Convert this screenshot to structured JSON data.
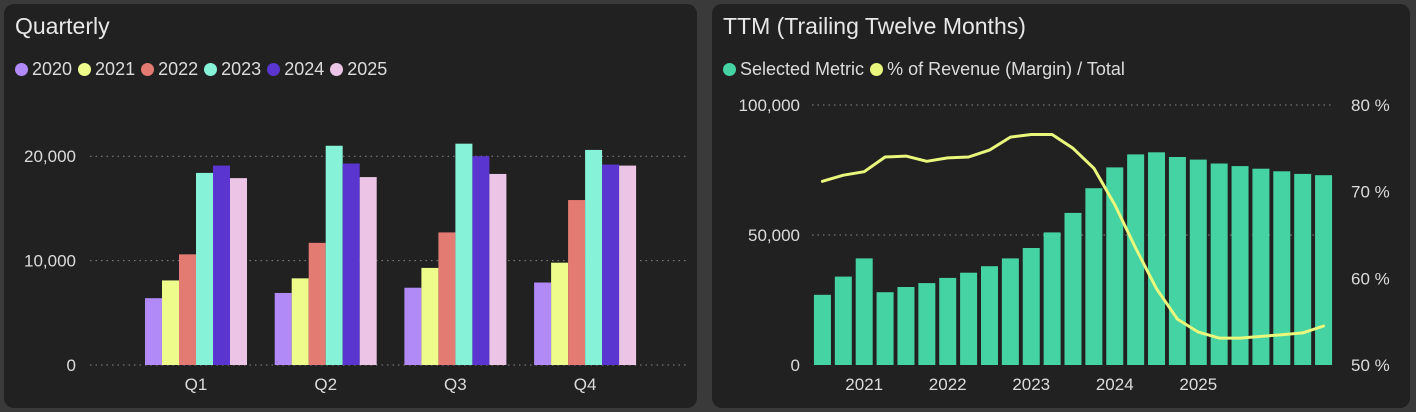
{
  "colors": {
    "background": "#212121",
    "grid": "#8a8a8a",
    "bar_tm": "#45d3a3",
    "line_margin": "#e9f77c"
  },
  "chart_data": [
    {
      "type": "bar",
      "title": "Quarterly",
      "categories": [
        "Q1",
        "Q2",
        "Q3",
        "Q4"
      ],
      "series": [
        {
          "name": "2020",
          "color": "#b28af7",
          "values": [
            6400,
            6900,
            7400,
            7900
          ]
        },
        {
          "name": "2021",
          "color": "#eefc8c",
          "values": [
            8100,
            8300,
            9300,
            9800
          ]
        },
        {
          "name": "2022",
          "color": "#e37b72",
          "values": [
            10600,
            11700,
            12700,
            15800
          ]
        },
        {
          "name": "2023",
          "color": "#86f2d8",
          "values": [
            18400,
            21000,
            21200,
            20600
          ]
        },
        {
          "name": "2024",
          "color": "#5a35cf",
          "values": [
            19100,
            19300,
            20000,
            19200
          ]
        },
        {
          "name": "2025",
          "color": "#ecc5e6",
          "values": [
            17900,
            18000,
            18300,
            19100
          ]
        }
      ],
      "ylim": [
        0,
        25000
      ],
      "yticks": [
        0,
        10000,
        20000
      ],
      "ytick_labels": [
        "0",
        "10,000",
        "20,000"
      ],
      "grid": true,
      "legend_position": "top-left"
    },
    {
      "type": "bar+line",
      "title": "TTM (Trailing Twelve Months)",
      "x": [
        "2020-Q4",
        "2021-Q1",
        "2021-Q2",
        "2021-Q3",
        "2021-Q4",
        "2022-Q1",
        "2022-Q2",
        "2022-Q3",
        "2022-Q4",
        "2023-Q1",
        "2023-Q2",
        "2023-Q3",
        "2023-Q4",
        "2024-Q1",
        "2024-Q2",
        "2024-Q3",
        "2024-Q4",
        "2025-Q1",
        "2025-Q2",
        "2025-Q3",
        "2025-Q4",
        "2026-Q1",
        "2026-Q2",
        "2026-Q3",
        "2026-Q4"
      ],
      "x_tick_labels": [
        "2021",
        "2022",
        "2023",
        "2024",
        "2025"
      ],
      "x_tick_positions": [
        2.5,
        6.5,
        10.5,
        14.5,
        18.5
      ],
      "series": [
        {
          "name": "Selected Metric",
          "type": "bar",
          "axis": "left",
          "color": "#45d3a3",
          "values": [
            27000,
            34000,
            41000,
            28000,
            30000,
            31500,
            33500,
            35500,
            38000,
            41000,
            45000,
            51000,
            58500,
            68000,
            76000,
            81000,
            81800,
            80000,
            79000,
            77500,
            76500,
            75500,
            74500,
            73500,
            73000
          ]
        },
        {
          "name": "% of Revenue (Margin) / Total",
          "type": "line",
          "axis": "right",
          "color": "#e9f77c",
          "values": [
            71.2,
            71.9,
            72.3,
            74.0,
            74.1,
            73.5,
            73.9,
            74.0,
            74.8,
            76.3,
            76.6,
            76.6,
            75.0,
            72.7,
            68.5,
            63.5,
            58.8,
            55.3,
            53.8,
            53.1,
            53.1,
            53.3,
            53.5,
            53.7,
            54.5
          ]
        }
      ],
      "ylim": [
        0,
        100000
      ],
      "yticks": [
        0,
        50000,
        100000
      ],
      "ytick_labels": [
        "0",
        "50,000",
        "100,000"
      ],
      "y2lim": [
        50,
        80
      ],
      "y2ticks": [
        50,
        60,
        70,
        80
      ],
      "y2tick_labels": [
        "50 %",
        "60 %",
        "70 %",
        "80 %"
      ],
      "grid": true,
      "legend_position": "top-left"
    }
  ]
}
